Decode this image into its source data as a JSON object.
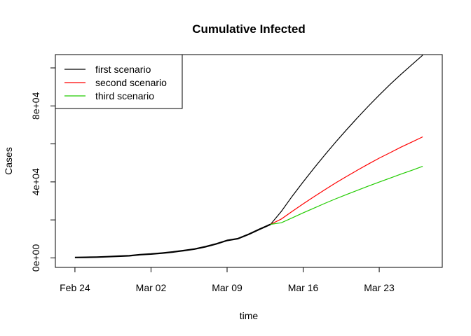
{
  "chart_data": {
    "type": "line",
    "title": "Cumulative Infected",
    "xlabel": "time",
    "ylabel": "Cases",
    "x_ticks": [
      "Feb 24",
      "Mar 02",
      "Mar 09",
      "Mar 16",
      "Mar 23"
    ],
    "y_ticks": [
      "0e+00",
      "4e+04",
      "8e+04"
    ],
    "y_tick_values": [
      0,
      40000,
      80000
    ],
    "x_tick_values": [
      0,
      7,
      14,
      21,
      28
    ],
    "xlim": [
      -1.8,
      33.8
    ],
    "ylim": [
      -5000,
      107000
    ],
    "grid": false,
    "legend_position": "top-left",
    "observed": {
      "x": [
        0,
        1,
        2,
        3,
        4,
        5,
        6,
        7,
        8,
        9,
        10,
        11,
        12,
        13,
        14,
        15,
        16,
        17,
        18
      ],
      "y": [
        229,
        322,
        400,
        650,
        888,
        1128,
        1694,
        2036,
        2502,
        3089,
        3858,
        4636,
        5883,
        7375,
        9172,
        10149,
        12462,
        15113,
        17660
      ]
    },
    "series": [
      {
        "name": "first scenario",
        "color": "#000000",
        "x": [
          18,
          19,
          20,
          21,
          22,
          23,
          24,
          25,
          26,
          27,
          28,
          29,
          30,
          31,
          32
        ],
        "y": [
          17660,
          24500,
          32500,
          40000,
          47200,
          54200,
          61000,
          67500,
          73800,
          79900,
          85700,
          91300,
          96600,
          101700,
          106700
        ]
      },
      {
        "name": "second scenario",
        "color": "#ff0000",
        "x": [
          18,
          19,
          20,
          21,
          22,
          23,
          24,
          25,
          26,
          27,
          28,
          29,
          30,
          31,
          32
        ],
        "y": [
          17660,
          20500,
          24500,
          28400,
          32200,
          35900,
          39500,
          42900,
          46200,
          49400,
          52500,
          55400,
          58300,
          61000,
          63700
        ]
      },
      {
        "name": "third scenario",
        "color": "#22cc00",
        "x": [
          18,
          19,
          20,
          21,
          22,
          23,
          24,
          25,
          26,
          27,
          28,
          29,
          30,
          31,
          32
        ],
        "y": [
          17660,
          18500,
          21100,
          23700,
          26200,
          28700,
          31100,
          33400,
          35600,
          37800,
          39900,
          42000,
          44100,
          46100,
          48200
        ]
      }
    ]
  }
}
